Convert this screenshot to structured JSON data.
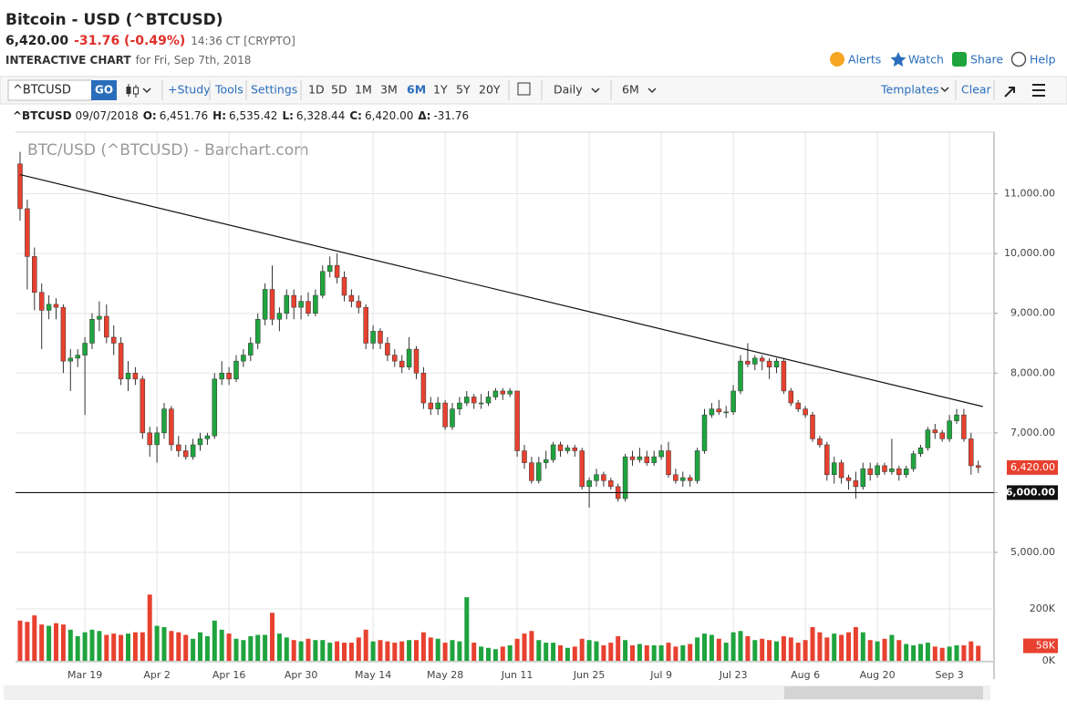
{
  "header": {
    "title": "Bitcoin - USD (^BTCUSD)",
    "price": "6,420.00",
    "change": "-31.76 (-0.49%)",
    "time": "14:36 CT [CRYPTO]",
    "chart_label": "INTERACTIVE CHART",
    "date_label": "for Fri, Sep 7th, 2018",
    "links": [
      "Alerts",
      "Watch",
      "Share",
      "Help"
    ]
  },
  "toolbar": {
    "symbol": "^BTCUSD",
    "go": "GO",
    "items": [
      "+Study",
      "Tools",
      "Settings"
    ],
    "ranges": [
      "1D",
      "5D",
      "1M",
      "3M",
      "6M",
      "1Y",
      "5Y",
      "20Y"
    ],
    "interval": "Daily",
    "period": "6M",
    "templates": "Templates",
    "clear": "Clear"
  },
  "quote_line": {
    "symbol": "^BTCUSD",
    "date": "09/07/2018",
    "fields": [
      {
        "key": "O:",
        "value": "6,451.76"
      },
      {
        "key": "H:",
        "value": "6,535.42"
      },
      {
        "key": "L:",
        "value": "6,328.44"
      },
      {
        "key": "C:",
        "value": "6,420.00"
      },
      {
        "key": "Δ:",
        "value": "-31.76"
      }
    ]
  },
  "chart_data": {
    "type": "candlestick",
    "title": "BTC/USD (^BTCUSD) - Barchart.com",
    "categories": [
      null,
      null,
      null,
      null,
      null,
      null,
      null,
      null,
      null,
      "Mar 19",
      null,
      null,
      null,
      null,
      null,
      null,
      null,
      null,
      null,
      "Apr 2",
      null,
      null,
      null,
      null,
      null,
      null,
      null,
      null,
      null,
      "Apr 16",
      null,
      null,
      null,
      null,
      null,
      null,
      null,
      null,
      null,
      "Apr 30",
      null,
      null,
      null,
      null,
      null,
      null,
      null,
      null,
      null,
      "May 14",
      null,
      null,
      null,
      null,
      null,
      null,
      null,
      null,
      null,
      "May 28",
      null,
      null,
      null,
      null,
      null,
      null,
      null,
      null,
      null,
      "Jun 11",
      null,
      null,
      null,
      null,
      null,
      null,
      null,
      null,
      null,
      "Jun 25",
      null,
      null,
      null,
      null,
      null,
      null,
      null,
      null,
      null,
      "Jul 9",
      null,
      null,
      null,
      null,
      null,
      null,
      null,
      null,
      null,
      "Jul 23",
      null,
      null,
      null,
      null,
      null,
      null,
      null,
      null,
      null,
      "Aug 6",
      null,
      null,
      null,
      null,
      null,
      null,
      null,
      null,
      null,
      "Aug 20",
      null,
      null,
      null,
      null,
      null,
      null,
      null,
      null,
      null,
      "Sep 3",
      null,
      null,
      null,
      null
    ],
    "ohlc": [
      [
        11500,
        11700,
        10550,
        10750
      ],
      [
        10750,
        10900,
        9400,
        9950
      ],
      [
        9950,
        10100,
        9050,
        9350
      ],
      [
        9350,
        9500,
        8400,
        9050
      ],
      [
        9050,
        9300,
        8900,
        9150
      ],
      [
        9150,
        9250,
        8900,
        9100
      ],
      [
        9100,
        9150,
        8000,
        8200
      ],
      [
        8200,
        8400,
        7700,
        8250
      ],
      [
        8250,
        8400,
        8100,
        8300
      ],
      [
        8300,
        8600,
        7300,
        8500
      ],
      [
        8500,
        9000,
        8400,
        8900
      ],
      [
        8900,
        9200,
        8700,
        8950
      ],
      [
        8950,
        9150,
        8500,
        8600
      ],
      [
        8600,
        8800,
        8300,
        8500
      ],
      [
        8500,
        8600,
        7800,
        7900
      ],
      [
        7900,
        8200,
        7700,
        8000
      ],
      [
        8000,
        8100,
        7800,
        7900
      ],
      [
        7900,
        7950,
        6900,
        7000
      ],
      [
        7000,
        7100,
        6600,
        6800
      ],
      [
        6800,
        7100,
        6500,
        7000
      ],
      [
        7000,
        7500,
        6900,
        7400
      ],
      [
        7400,
        7450,
        6700,
        6800
      ],
      [
        6800,
        6950,
        6600,
        6700
      ],
      [
        6700,
        6800,
        6550,
        6600
      ],
      [
        6600,
        6900,
        6550,
        6800
      ],
      [
        6800,
        7000,
        6700,
        6900
      ],
      [
        6900,
        7000,
        6800,
        6950
      ],
      [
        6950,
        8000,
        6900,
        7900
      ],
      [
        7900,
        8200,
        7800,
        8000
      ],
      [
        8000,
        8100,
        7800,
        7900
      ],
      [
        7900,
        8300,
        7850,
        8200
      ],
      [
        8200,
        8400,
        8100,
        8300
      ],
      [
        8300,
        8600,
        8200,
        8500
      ],
      [
        8500,
        9000,
        8400,
        8900
      ],
      [
        8900,
        9500,
        8800,
        9400
      ],
      [
        9400,
        9800,
        8800,
        8900
      ],
      [
        8900,
        9100,
        8700,
        9000
      ],
      [
        9000,
        9400,
        8900,
        9300
      ],
      [
        9300,
        9400,
        8900,
        9100
      ],
      [
        9100,
        9300,
        8900,
        9200
      ],
      [
        9200,
        9350,
        8950,
        9000
      ],
      [
        9000,
        9400,
        8950,
        9300
      ],
      [
        9300,
        9800,
        9250,
        9700
      ],
      [
        9700,
        9950,
        9600,
        9800
      ],
      [
        9800,
        10000,
        9500,
        9600
      ],
      [
        9600,
        9700,
        9200,
        9300
      ],
      [
        9300,
        9400,
        9100,
        9200
      ],
      [
        9200,
        9300,
        9000,
        9100
      ],
      [
        9100,
        9150,
        8400,
        8500
      ],
      [
        8500,
        8800,
        8400,
        8700
      ],
      [
        8700,
        8750,
        8400,
        8500
      ],
      [
        8500,
        8600,
        8200,
        8300
      ],
      [
        8300,
        8400,
        8100,
        8200
      ],
      [
        8200,
        8300,
        8000,
        8100
      ],
      [
        8100,
        8600,
        8050,
        8400
      ],
      [
        8400,
        8450,
        7900,
        8000
      ],
      [
        8000,
        8100,
        7400,
        7500
      ],
      [
        7500,
        7600,
        7300,
        7400
      ],
      [
        7400,
        7600,
        7300,
        7500
      ],
      [
        7500,
        7550,
        7050,
        7100
      ],
      [
        7100,
        7500,
        7050,
        7400
      ],
      [
        7400,
        7600,
        7300,
        7500
      ],
      [
        7500,
        7700,
        7450,
        7600
      ],
      [
        7600,
        7650,
        7400,
        7500
      ],
      [
        7500,
        7650,
        7400,
        7500
      ],
      [
        7500,
        7700,
        7450,
        7600
      ],
      [
        7600,
        7750,
        7550,
        7700
      ],
      [
        7700,
        7750,
        7550,
        7650
      ],
      [
        7650,
        7750,
        7600,
        7700
      ],
      [
        7700,
        7700,
        6600,
        6700
      ],
      [
        6700,
        6800,
        6400,
        6500
      ],
      [
        6500,
        6600,
        6150,
        6200
      ],
      [
        6200,
        6600,
        6150,
        6500
      ],
      [
        6500,
        6700,
        6400,
        6550
      ],
      [
        6550,
        6850,
        6500,
        6800
      ],
      [
        6800,
        6850,
        6600,
        6700
      ],
      [
        6700,
        6800,
        6650,
        6750
      ],
      [
        6750,
        6800,
        6600,
        6700
      ],
      [
        6700,
        6750,
        6050,
        6100
      ],
      [
        6100,
        6250,
        5750,
        6200
      ],
      [
        6200,
        6400,
        6100,
        6300
      ],
      [
        6300,
        6350,
        6100,
        6200
      ],
      [
        6200,
        6250,
        6050,
        6100
      ],
      [
        6100,
        6150,
        5850,
        5900
      ],
      [
        5900,
        6650,
        5850,
        6600
      ],
      [
        6600,
        6700,
        6450,
        6550
      ],
      [
        6550,
        6750,
        6500,
        6600
      ],
      [
        6600,
        6700,
        6450,
        6500
      ],
      [
        6500,
        6700,
        6450,
        6600
      ],
      [
        6600,
        6800,
        6550,
        6700
      ],
      [
        6700,
        6850,
        6250,
        6300
      ],
      [
        6300,
        6400,
        6150,
        6200
      ],
      [
        6200,
        6350,
        6100,
        6250
      ],
      [
        6250,
        6300,
        6100,
        6200
      ],
      [
        6200,
        6750,
        6150,
        6700
      ],
      [
        6700,
        7400,
        6650,
        7300
      ],
      [
        7300,
        7500,
        7250,
        7400
      ],
      [
        7400,
        7550,
        7300,
        7350
      ],
      [
        7350,
        7450,
        7250,
        7350
      ],
      [
        7350,
        7800,
        7300,
        7700
      ],
      [
        7700,
        8300,
        7650,
        8200
      ],
      [
        8200,
        8500,
        8100,
        8150
      ],
      [
        8150,
        8300,
        8050,
        8250
      ],
      [
        8250,
        8300,
        8050,
        8200
      ],
      [
        8200,
        8250,
        7900,
        8100
      ],
      [
        8100,
        8250,
        8000,
        8200
      ],
      [
        8200,
        8250,
        7650,
        7700
      ],
      [
        7700,
        7750,
        7450,
        7500
      ],
      [
        7500,
        7550,
        7350,
        7400
      ],
      [
        7400,
        7450,
        7250,
        7300
      ],
      [
        7300,
        7350,
        6850,
        6900
      ],
      [
        6900,
        6950,
        6750,
        6800
      ],
      [
        6800,
        6850,
        6200,
        6300
      ],
      [
        6300,
        6600,
        6150,
        6500
      ],
      [
        6500,
        6550,
        6150,
        6250
      ],
      [
        6250,
        6300,
        6050,
        6200
      ],
      [
        6200,
        6350,
        5900,
        6100
      ],
      [
        6100,
        6500,
        6050,
        6400
      ],
      [
        6400,
        6500,
        6200,
        6300
      ],
      [
        6300,
        6500,
        6250,
        6450
      ],
      [
        6450,
        6500,
        6300,
        6350
      ],
      [
        6350,
        6900,
        6300,
        6400
      ],
      [
        6400,
        6450,
        6200,
        6300
      ],
      [
        6300,
        6450,
        6250,
        6400
      ],
      [
        6400,
        6700,
        6350,
        6650
      ],
      [
        6650,
        6800,
        6600,
        6750
      ],
      [
        6750,
        7100,
        6700,
        7050
      ],
      [
        7050,
        7150,
        6900,
        7000
      ],
      [
        7000,
        7050,
        6850,
        6900
      ],
      [
        6900,
        7300,
        6850,
        7200
      ],
      [
        7200,
        7400,
        7150,
        7300
      ],
      [
        7300,
        7400,
        6850,
        6900
      ],
      [
        6900,
        7000,
        6300,
        6450
      ],
      [
        6451.76,
        6535.42,
        6328.44,
        6420
      ]
    ],
    "up_color": "#1fa43e",
    "down_color": "#e8412f",
    "ylim": [
      5000,
      12030
    ],
    "yticks": [
      {
        "value": 5000,
        "label": "5,000.00"
      },
      {
        "value": 6000,
        "label": "6,000.00"
      },
      {
        "value": 7000,
        "label": "7,000.00"
      },
      {
        "value": 8000,
        "label": "8,000.00"
      },
      {
        "value": 9000,
        "label": "9,000.00"
      },
      {
        "value": 10000,
        "label": "10,000.00"
      },
      {
        "value": 11000,
        "label": "11,000.00"
      }
    ],
    "grid": true,
    "last_price_label": "6,420.00",
    "support": {
      "value": 6000,
      "label": "6,000.00"
    },
    "trendline": {
      "start": [
        0,
        11320
      ],
      "end": [
        133,
        7440
      ]
    },
    "volume": {
      "values": [
        155,
        150,
        175,
        140,
        135,
        145,
        140,
        120,
        95,
        110,
        120,
        115,
        100,
        105,
        100,
        105,
        110,
        110,
        255,
        135,
        130,
        115,
        110,
        100,
        85,
        110,
        95,
        155,
        120,
        105,
        85,
        80,
        95,
        100,
        100,
        185,
        105,
        90,
        80,
        75,
        85,
        80,
        80,
        70,
        75,
        70,
        70,
        90,
        120,
        75,
        80,
        75,
        70,
        75,
        80,
        80,
        110,
        90,
        85,
        70,
        80,
        75,
        245,
        70,
        55,
        50,
        45,
        55,
        60,
        85,
        105,
        115,
        80,
        70,
        70,
        60,
        50,
        55,
        85,
        80,
        75,
        60,
        70,
        95,
        80,
        60,
        65,
        60,
        60,
        60,
        70,
        55,
        60,
        65,
        90,
        105,
        100,
        85,
        70,
        110,
        115,
        95,
        80,
        85,
        80,
        75,
        95,
        90,
        70,
        80,
        130,
        110,
        90,
        105,
        100,
        110,
        130,
        110,
        80,
        75,
        85,
        100,
        80,
        65,
        60,
        65,
        70,
        55,
        50,
        55,
        60,
        60,
        75,
        58
      ],
      "ylim": [
        0,
        400
      ],
      "yticks": [
        {
          "value": 0,
          "label": "0K"
        },
        {
          "value": 200,
          "label": "200K"
        }
      ],
      "last_label": "58K"
    }
  }
}
